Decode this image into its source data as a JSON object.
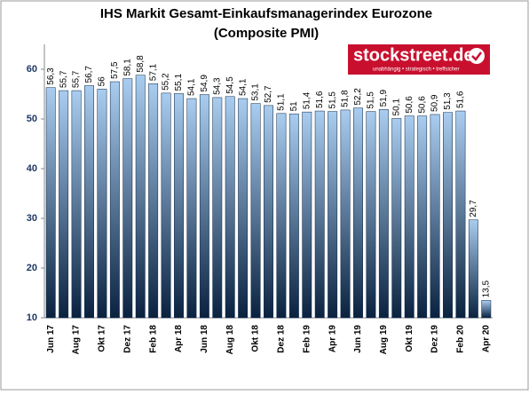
{
  "chart_data": {
    "type": "bar",
    "title": [
      "IHS Markit Gesamt-Einkaufsmanagerindex Eurozone",
      "(Composite PMI)"
    ],
    "logo": {
      "name": "stockstreet.de",
      "tagline": "unabhängig • strategisch • treffsicher"
    },
    "categories": [
      "Jun 17",
      null,
      "Aug 17",
      null,
      "Okt 17",
      null,
      "Dez 17",
      null,
      "Feb 18",
      null,
      "Apr 18",
      null,
      "Jun 18",
      null,
      "Aug 18",
      null,
      "Okt 18",
      null,
      "Dez 18",
      null,
      "Feb 19",
      null,
      "Apr 19",
      null,
      "Jun 19",
      null,
      "Aug 19",
      null,
      "Okt 19",
      null,
      "Dez 19",
      null,
      "Feb 20",
      null,
      "Apr 20"
    ],
    "values": [
      56.3,
      55.7,
      55.7,
      56.7,
      56,
      57.5,
      58.1,
      58.8,
      57.1,
      55.2,
      55.1,
      54.1,
      54.9,
      54.3,
      54.5,
      54.1,
      53.1,
      52.7,
      51.1,
      51,
      51.4,
      51.6,
      51.5,
      51.8,
      52.2,
      51.5,
      51.9,
      50.1,
      50.6,
      50.6,
      50.9,
      51.3,
      51.6,
      29.7,
      13.5
    ],
    "value_labels": [
      "56,3",
      "55,7",
      "55,7",
      "56,7",
      "56",
      "57,5",
      "58,1",
      "58,8",
      "57,1",
      "55,2",
      "55,1",
      "54,1",
      "54,9",
      "54,3",
      "54,5",
      "54,1",
      "53,1",
      "52,7",
      "51,1",
      "51",
      "51,4",
      "51,6",
      "51,5",
      "51,8",
      "52,2",
      "51,5",
      "51,9",
      "50,1",
      "50,6",
      "50,6",
      "50,9",
      "51,3",
      "51,6",
      "29,7",
      "13,5"
    ],
    "colors": [
      "#0a2240",
      "#a9cdf0"
    ],
    "ylim": [
      10,
      65
    ],
    "yticks": [
      10,
      20,
      30,
      40,
      50,
      60
    ],
    "grid": false
  }
}
